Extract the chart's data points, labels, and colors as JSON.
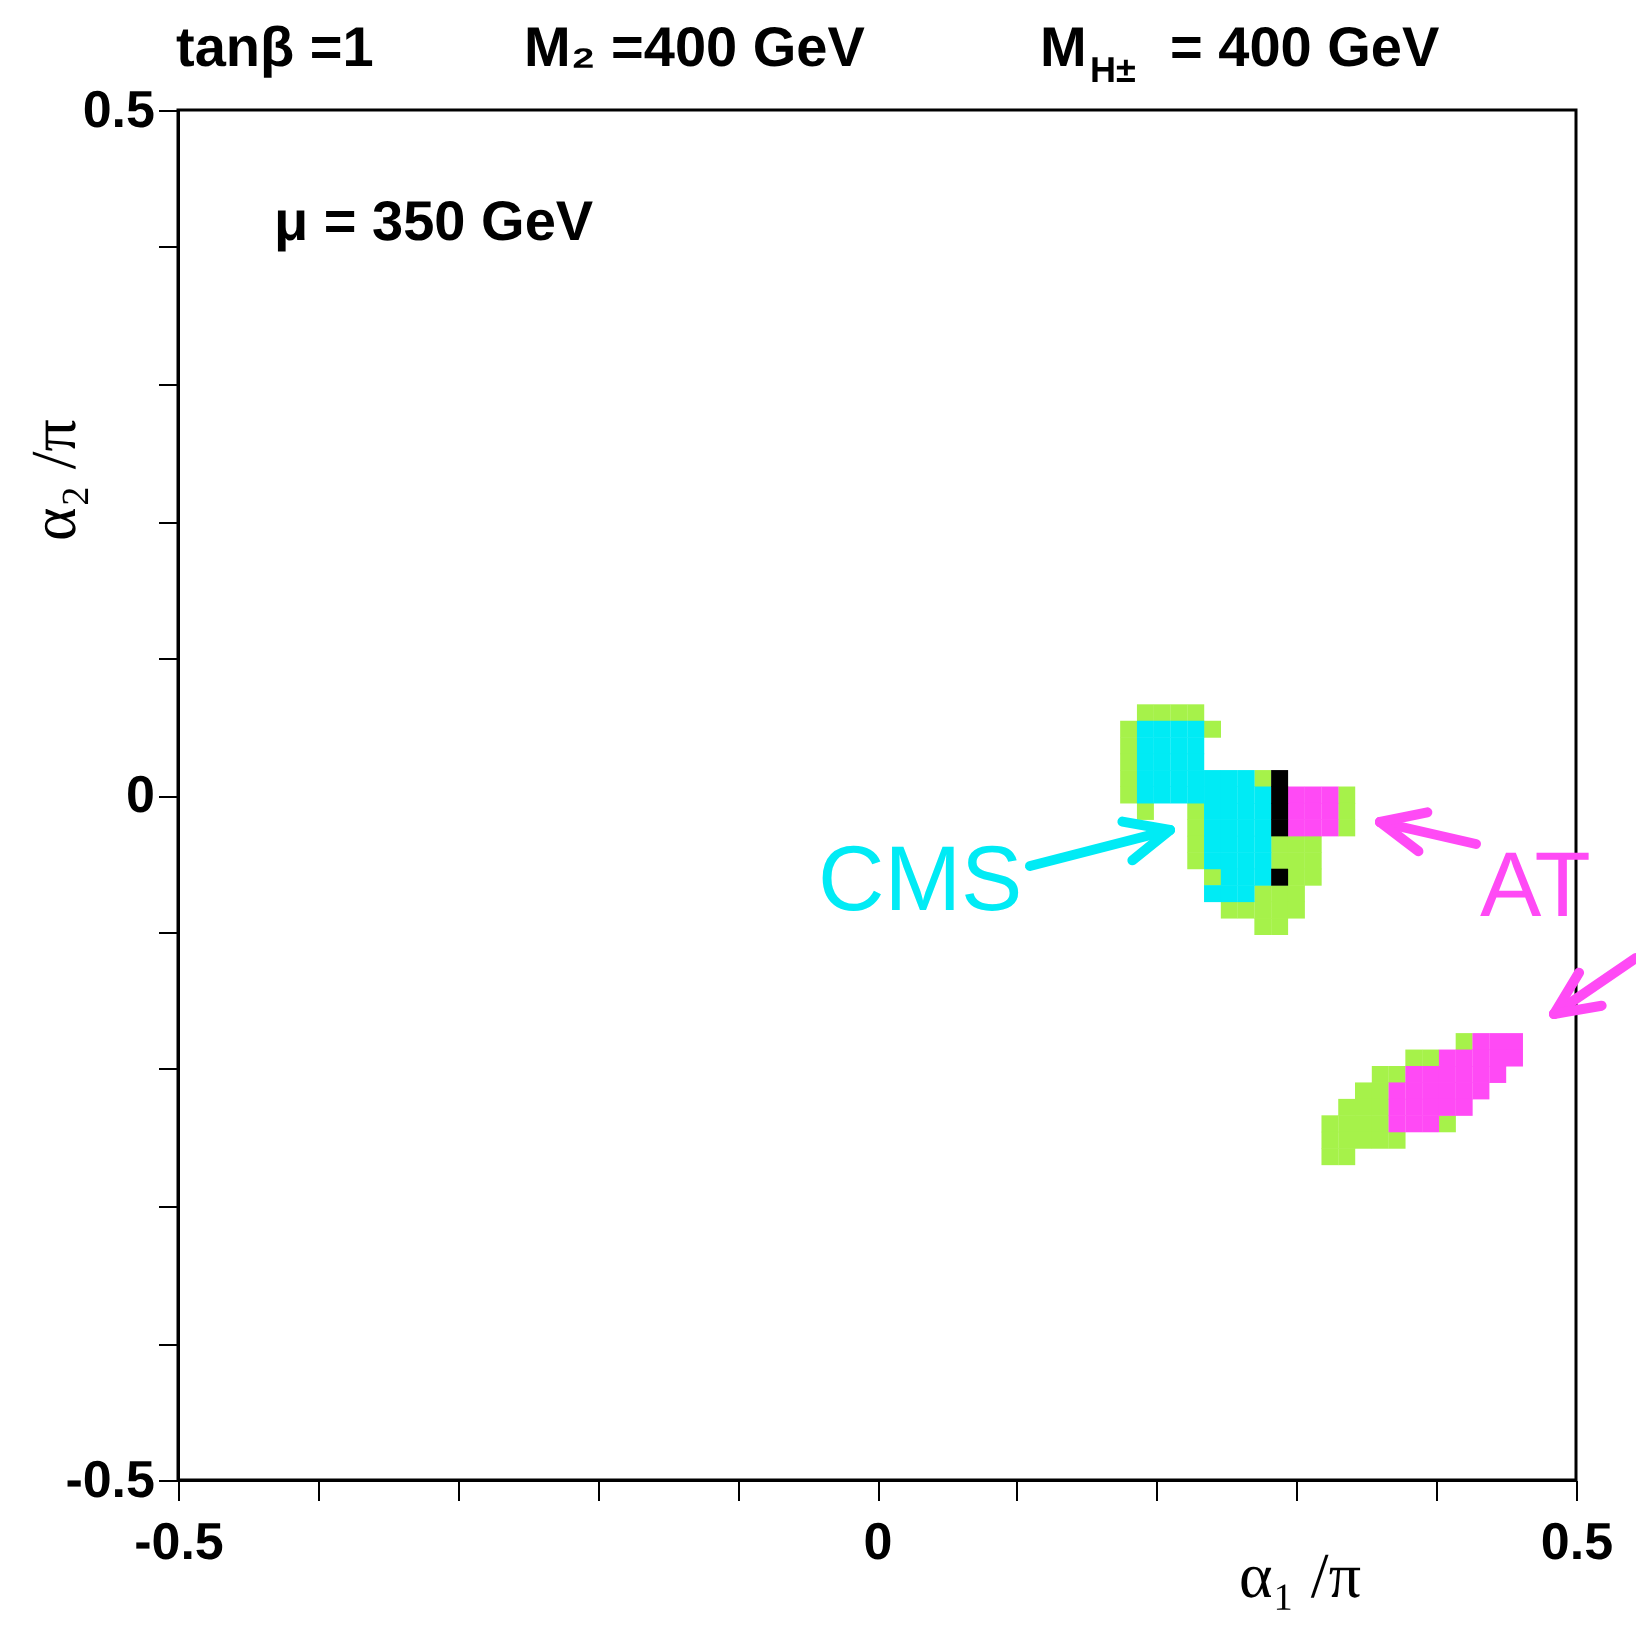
{
  "chart_data": {
    "type": "scatter",
    "title": "tanβ =1   M₂ =400 GeV   M$_{H±}$ = 400 GeV",
    "xlabel": "α₁ /π",
    "ylabel": "α₂ /π",
    "xlim": [
      -0.5,
      0.5
    ],
    "ylim": [
      -0.5,
      0.5
    ],
    "xticks": [
      -0.5,
      {
        "value": -0.4,
        "label": null
      },
      {
        "value": -0.3,
        "label": null
      },
      {
        "value": -0.2,
        "label": null
      },
      {
        "value": -0.1,
        "label": null
      },
      0,
      {
        "value": 0.1,
        "label": null
      },
      {
        "value": 0.2,
        "label": null
      },
      {
        "value": 0.3,
        "label": null
      },
      {
        "value": 0.4,
        "label": null
      },
      0.5
    ],
    "yticks": [
      -0.5,
      {
        "value": -0.4,
        "label": null
      },
      {
        "value": -0.3,
        "label": null
      },
      {
        "value": -0.2,
        "label": null
      },
      {
        "value": -0.1,
        "label": null
      },
      0,
      {
        "value": 0.1,
        "label": null
      },
      {
        "value": 0.2,
        "label": null
      },
      {
        "value": 0.3,
        "label": null
      },
      {
        "value": 0.4,
        "label": null
      },
      0.5
    ],
    "marker": "square",
    "annotations": [
      "μ =  350 GeV",
      "CMS",
      "AT"
    ],
    "series": [
      {
        "color": "#a6f24a",
        "x": [
          0.192,
          0.204,
          0.216,
          0.228,
          0.18,
          0.24,
          0.18,
          0.18,
          0.18,
          0.276,
          0.18,
          0.336,
          0.192,
          0.228,
          0.336,
          0.228,
          0.336,
          0.228,
          0.288,
          0.3,
          0.312,
          0.228,
          0.288,
          0.3,
          0.312,
          0.24,
          0.3,
          0.312,
          0.276,
          0.288,
          0.3,
          0.252,
          0.264,
          0.276,
          0.288,
          0.3,
          0.276,
          0.288,
          0.42,
          0.384,
          0.396,
          0.36,
          0.372,
          0.348,
          0.36,
          0.336,
          0.348,
          0.36,
          0.324,
          0.336,
          0.348,
          0.36,
          0.408,
          0.324,
          0.336,
          0.348,
          0.36,
          0.372,
          0.324,
          0.336
        ],
        "values": [
          0.06,
          0.06,
          0.06,
          0.06,
          0.048,
          0.048,
          0.036,
          0.024,
          0.012,
          0.012,
          0.0,
          0.0,
          -0.012,
          -0.012,
          -0.012,
          -0.024,
          -0.024,
          -0.036,
          -0.036,
          -0.036,
          -0.036,
          -0.048,
          -0.048,
          -0.048,
          -0.048,
          -0.06,
          -0.06,
          -0.06,
          -0.072,
          -0.072,
          -0.072,
          -0.084,
          -0.084,
          -0.084,
          -0.084,
          -0.084,
          -0.096,
          -0.096,
          -0.18,
          -0.192,
          -0.192,
          -0.204,
          -0.204,
          -0.216,
          -0.216,
          -0.228,
          -0.228,
          -0.228,
          -0.24,
          -0.24,
          -0.24,
          -0.24,
          -0.24,
          -0.252,
          -0.252,
          -0.252,
          -0.252,
          -0.252,
          -0.264,
          -0.264
        ]
      },
      {
        "color": "#00ebf5",
        "x": [
          0.192,
          0.204,
          0.216,
          0.228,
          0.192,
          0.204,
          0.216,
          0.228,
          0.192,
          0.204,
          0.216,
          0.228,
          0.192,
          0.204,
          0.216,
          0.228,
          0.24,
          0.252,
          0.264,
          0.192,
          0.204,
          0.216,
          0.228,
          0.24,
          0.252,
          0.264,
          0.276,
          0.24,
          0.252,
          0.264,
          0.276,
          0.24,
          0.252,
          0.264,
          0.276,
          0.24,
          0.252,
          0.264,
          0.276,
          0.24,
          0.252,
          0.264,
          0.276,
          0.252,
          0.264,
          0.276,
          0.24,
          0.252,
          0.264
        ],
        "values": [
          0.048,
          0.048,
          0.048,
          0.048,
          0.036,
          0.036,
          0.036,
          0.036,
          0.024,
          0.024,
          0.024,
          0.024,
          0.012,
          0.012,
          0.012,
          0.012,
          0.012,
          0.012,
          0.012,
          0.0,
          0.0,
          0.0,
          0.0,
          0.0,
          0.0,
          0.0,
          0.0,
          -0.012,
          -0.012,
          -0.012,
          -0.012,
          -0.024,
          -0.024,
          -0.024,
          -0.024,
          -0.036,
          -0.036,
          -0.036,
          -0.036,
          -0.048,
          -0.048,
          -0.048,
          -0.048,
          -0.06,
          -0.06,
          -0.06,
          -0.072,
          -0.072,
          -0.072
        ]
      },
      {
        "color": "#ff4af5",
        "x": [
          0.3,
          0.312,
          0.324,
          0.3,
          0.312,
          0.324,
          0.3,
          0.312,
          0.324,
          0.432,
          0.444,
          0.456,
          0.408,
          0.42,
          0.432,
          0.444,
          0.456,
          0.384,
          0.396,
          0.408,
          0.42,
          0.432,
          0.444,
          0.372,
          0.384,
          0.396,
          0.408,
          0.42,
          0.432,
          0.372,
          0.384,
          0.396,
          0.408,
          0.42,
          0.372,
          0.384,
          0.396
        ],
        "values": [
          0.0,
          0.0,
          0.0,
          -0.012,
          -0.012,
          -0.012,
          -0.024,
          -0.024,
          -0.024,
          -0.18,
          -0.18,
          -0.18,
          -0.192,
          -0.192,
          -0.192,
          -0.192,
          -0.192,
          -0.204,
          -0.204,
          -0.204,
          -0.204,
          -0.204,
          -0.204,
          -0.216,
          -0.216,
          -0.216,
          -0.216,
          -0.216,
          -0.216,
          -0.228,
          -0.228,
          -0.228,
          -0.228,
          -0.228,
          -0.24,
          -0.24,
          -0.24
        ]
      },
      {
        "color": "#000000",
        "x": [
          0.288,
          0.288,
          0.288,
          0.288,
          0.288
        ],
        "values": [
          0.012,
          0.0,
          -0.012,
          -0.024,
          -0.06
        ]
      }
    ]
  }
}
